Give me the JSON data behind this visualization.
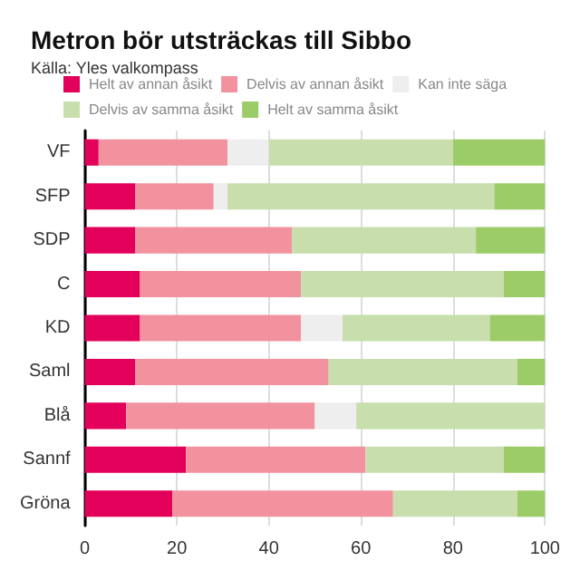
{
  "chart_data": {
    "type": "bar",
    "orientation": "horizontal",
    "stacked": true,
    "title": "Metron bör utsträckas till Sibbo",
    "subtitle": "Källa: Yles valkompass",
    "categories": [
      "VF",
      "SFP",
      "SDP",
      "C",
      "KD",
      "Saml",
      "Blå",
      "Sannf",
      "Gröna"
    ],
    "series": [
      {
        "name": "Helt av annan åsikt",
        "color": "#e2005a",
        "values": [
          3,
          11,
          11,
          12,
          12,
          11,
          9,
          22,
          19
        ]
      },
      {
        "name": "Delvis av annan åsikt",
        "color": "#f2929f",
        "values": [
          28,
          17,
          34,
          35,
          35,
          42,
          41,
          39,
          48
        ]
      },
      {
        "name": "Kan inte säga",
        "color": "#eeeeee",
        "values": [
          9,
          3,
          0,
          0,
          9,
          0,
          9,
          0,
          0
        ]
      },
      {
        "name": "Delvis av samma åsikt",
        "color": "#c8dead",
        "values": [
          40,
          58,
          40,
          44,
          32,
          41,
          41,
          30,
          27
        ]
      },
      {
        "name": "Helt av samma åsikt",
        "color": "#9ccc68",
        "values": [
          20,
          11,
          15,
          9,
          12,
          6,
          0,
          9,
          6
        ]
      }
    ],
    "xlim": [
      0,
      100
    ],
    "xticks": [
      0,
      20,
      40,
      60,
      80,
      100
    ],
    "grid": "x",
    "legend": "top left"
  }
}
